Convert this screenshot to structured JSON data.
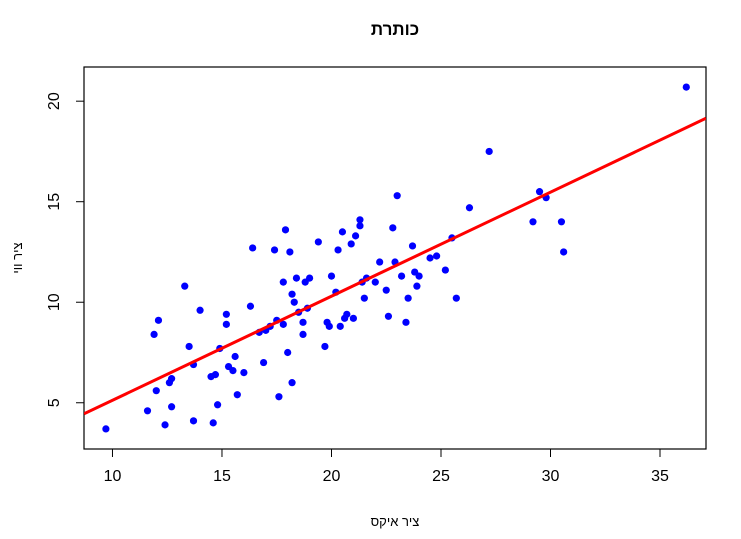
{
  "chart_data": {
    "type": "scatter",
    "title": "כותרת",
    "xlabel": "ציר איקס",
    "ylabel": "ציר ווי",
    "xlim": [
      8.7,
      37.1
    ],
    "ylim": [
      2.7,
      21.7
    ],
    "x_ticks": [
      10,
      15,
      20,
      25,
      30,
      35
    ],
    "y_ticks": [
      5,
      10,
      15,
      20
    ],
    "grid": false,
    "legend": "none",
    "point_color": "#0000ff",
    "line_color": "#ff0000",
    "series": [
      {
        "points": [
          [
            9.7,
            3.7
          ],
          [
            11.6,
            4.6
          ],
          [
            11.9,
            8.4
          ],
          [
            12.0,
            5.6
          ],
          [
            12.1,
            9.1
          ],
          [
            12.4,
            3.9
          ],
          [
            12.6,
            6.0
          ],
          [
            12.7,
            6.2
          ],
          [
            12.7,
            4.8
          ],
          [
            13.3,
            10.8
          ],
          [
            13.5,
            7.8
          ],
          [
            13.7,
            4.1
          ],
          [
            13.7,
            6.9
          ],
          [
            14.0,
            9.6
          ],
          [
            14.5,
            6.3
          ],
          [
            14.6,
            4.0
          ],
          [
            14.7,
            6.4
          ],
          [
            14.8,
            4.9
          ],
          [
            14.9,
            7.7
          ],
          [
            15.2,
            9.4
          ],
          [
            15.2,
            8.9
          ],
          [
            15.3,
            6.8
          ],
          [
            15.5,
            6.6
          ],
          [
            15.6,
            7.3
          ],
          [
            15.7,
            5.4
          ],
          [
            16.0,
            6.5
          ],
          [
            16.3,
            9.8
          ],
          [
            16.4,
            12.7
          ],
          [
            16.7,
            8.5
          ],
          [
            16.9,
            7.0
          ],
          [
            17.0,
            8.6
          ],
          [
            17.2,
            8.8
          ],
          [
            17.4,
            12.6
          ],
          [
            17.5,
            9.1
          ],
          [
            17.6,
            5.3
          ],
          [
            17.8,
            11.0
          ],
          [
            17.8,
            8.9
          ],
          [
            17.9,
            13.6
          ],
          [
            18.0,
            7.5
          ],
          [
            18.1,
            12.5
          ],
          [
            18.2,
            6.0
          ],
          [
            18.2,
            10.4
          ],
          [
            18.3,
            10.0
          ],
          [
            18.4,
            11.2
          ],
          [
            18.5,
            9.5
          ],
          [
            18.7,
            8.4
          ],
          [
            18.7,
            9.0
          ],
          [
            18.8,
            11.0
          ],
          [
            18.9,
            9.7
          ],
          [
            19.0,
            11.2
          ],
          [
            19.4,
            13.0
          ],
          [
            19.7,
            7.8
          ],
          [
            19.8,
            9.0
          ],
          [
            19.9,
            8.8
          ],
          [
            20.0,
            11.3
          ],
          [
            20.2,
            10.5
          ],
          [
            20.3,
            12.6
          ],
          [
            20.4,
            8.8
          ],
          [
            20.5,
            13.5
          ],
          [
            20.6,
            9.2
          ],
          [
            20.7,
            9.4
          ],
          [
            20.9,
            12.9
          ],
          [
            21.0,
            9.2
          ],
          [
            21.1,
            13.3
          ],
          [
            21.3,
            14.1
          ],
          [
            21.3,
            13.8
          ],
          [
            21.4,
            11.0
          ],
          [
            21.5,
            10.2
          ],
          [
            21.6,
            11.2
          ],
          [
            22.0,
            11.0
          ],
          [
            22.2,
            12.0
          ],
          [
            22.5,
            10.6
          ],
          [
            22.6,
            9.3
          ],
          [
            22.8,
            13.7
          ],
          [
            22.9,
            12.0
          ],
          [
            23.0,
            15.3
          ],
          [
            23.2,
            11.3
          ],
          [
            23.4,
            9.0
          ],
          [
            23.5,
            10.2
          ],
          [
            23.7,
            12.8
          ],
          [
            23.8,
            11.5
          ],
          [
            23.9,
            10.8
          ],
          [
            24.0,
            11.3
          ],
          [
            24.5,
            12.2
          ],
          [
            24.8,
            12.3
          ],
          [
            25.2,
            11.6
          ],
          [
            25.5,
            13.2
          ],
          [
            25.7,
            10.2
          ],
          [
            26.3,
            14.7
          ],
          [
            27.2,
            17.5
          ],
          [
            29.2,
            14.0
          ],
          [
            29.5,
            15.5
          ],
          [
            29.8,
            15.2
          ],
          [
            30.5,
            14.0
          ],
          [
            30.6,
            12.5
          ],
          [
            36.2,
            20.7
          ]
        ]
      }
    ],
    "regression_line": {
      "x": [
        8.7,
        37.1
      ],
      "y": [
        4.45,
        19.15
      ]
    }
  }
}
